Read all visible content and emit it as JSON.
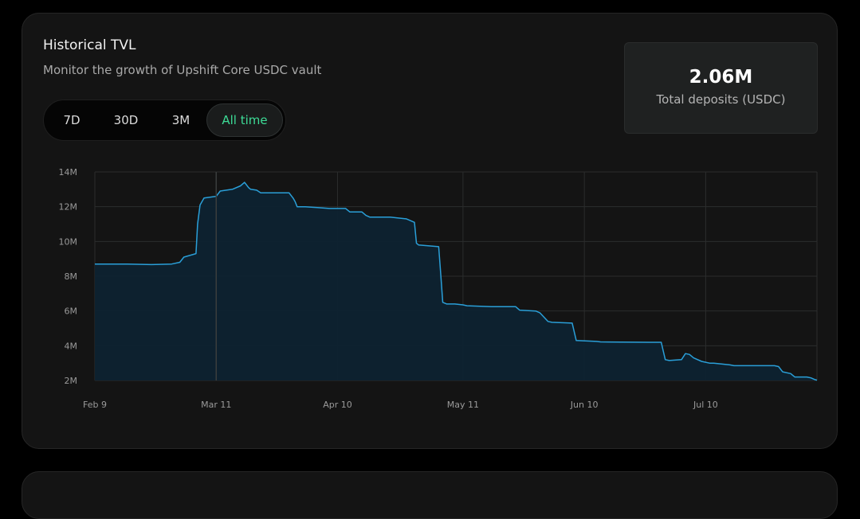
{
  "header": {
    "title": "Historical TVL",
    "subtitle": "Monitor the growth of Upshift Core USDC vault"
  },
  "range_tabs": [
    {
      "label": "7D",
      "active": false
    },
    {
      "label": "30D",
      "active": false
    },
    {
      "label": "3M",
      "active": false
    },
    {
      "label": "All time",
      "active": true
    }
  ],
  "stat": {
    "value": "2.06M",
    "label": "Total deposits (USDC)"
  },
  "colors": {
    "accent": "#3ddc97",
    "line": "#2a9fd8",
    "area": "#0d2230"
  },
  "chart_data": {
    "type": "area",
    "title": "",
    "xlabel": "",
    "ylabel": "",
    "ylim": [
      2,
      14
    ],
    "y_unit": "M",
    "yticks": [
      "2M",
      "4M",
      "6M",
      "8M",
      "10M",
      "12M",
      "14M"
    ],
    "xticks": [
      {
        "label": "Feb 9",
        "day": 0
      },
      {
        "label": "Mar 11",
        "day": 30
      },
      {
        "label": "Apr 10",
        "day": 60
      },
      {
        "label": "May 11",
        "day": 91
      },
      {
        "label": "Jun 10",
        "day": 121
      },
      {
        "label": "Jul 10",
        "day": 151
      }
    ],
    "xlim_days": [
      0,
      178.5
    ],
    "grid": true,
    "series": [
      {
        "x": [
          0,
          8,
          14,
          19,
          21,
          22,
          25,
          25.4,
          26,
          27,
          30,
          31,
          34,
          36,
          37,
          38,
          38.5,
          40,
          41,
          45,
          48,
          49,
          49.5,
          50,
          52,
          55,
          58,
          60,
          62,
          63,
          66,
          67,
          68,
          69,
          71,
          73,
          77,
          79,
          79.5,
          80,
          85,
          85.5,
          86,
          87,
          89,
          91,
          92,
          98,
          99,
          104,
          105,
          109,
          110,
          112,
          113,
          118,
          119,
          124,
          125,
          137,
          140,
          141,
          142,
          145,
          146,
          147,
          148,
          150,
          152,
          153,
          157,
          158,
          168,
          169,
          170,
          172,
          173,
          176,
          177,
          178,
          178.5
        ],
        "y": [
          8.7,
          8.7,
          8.67,
          8.7,
          8.8,
          9.1,
          9.3,
          11.0,
          12.1,
          12.5,
          12.6,
          12.9,
          13.0,
          13.2,
          13.4,
          13.1,
          13.0,
          12.95,
          12.8,
          12.8,
          12.8,
          12.5,
          12.3,
          12.0,
          12.0,
          11.95,
          11.9,
          11.9,
          11.9,
          11.7,
          11.7,
          11.5,
          11.4,
          11.4,
          11.4,
          11.4,
          11.3,
          11.1,
          9.9,
          9.8,
          9.7,
          8.1,
          6.5,
          6.4,
          6.4,
          6.35,
          6.3,
          6.25,
          6.25,
          6.25,
          6.05,
          6.0,
          5.9,
          5.4,
          5.35,
          5.3,
          4.3,
          4.25,
          4.22,
          4.2,
          4.2,
          3.2,
          3.15,
          3.2,
          3.55,
          3.5,
          3.3,
          3.1,
          3.0,
          3.0,
          2.9,
          2.85,
          2.85,
          2.8,
          2.5,
          2.4,
          2.2,
          2.2,
          2.15,
          2.05,
          2.02
        ]
      }
    ]
  }
}
